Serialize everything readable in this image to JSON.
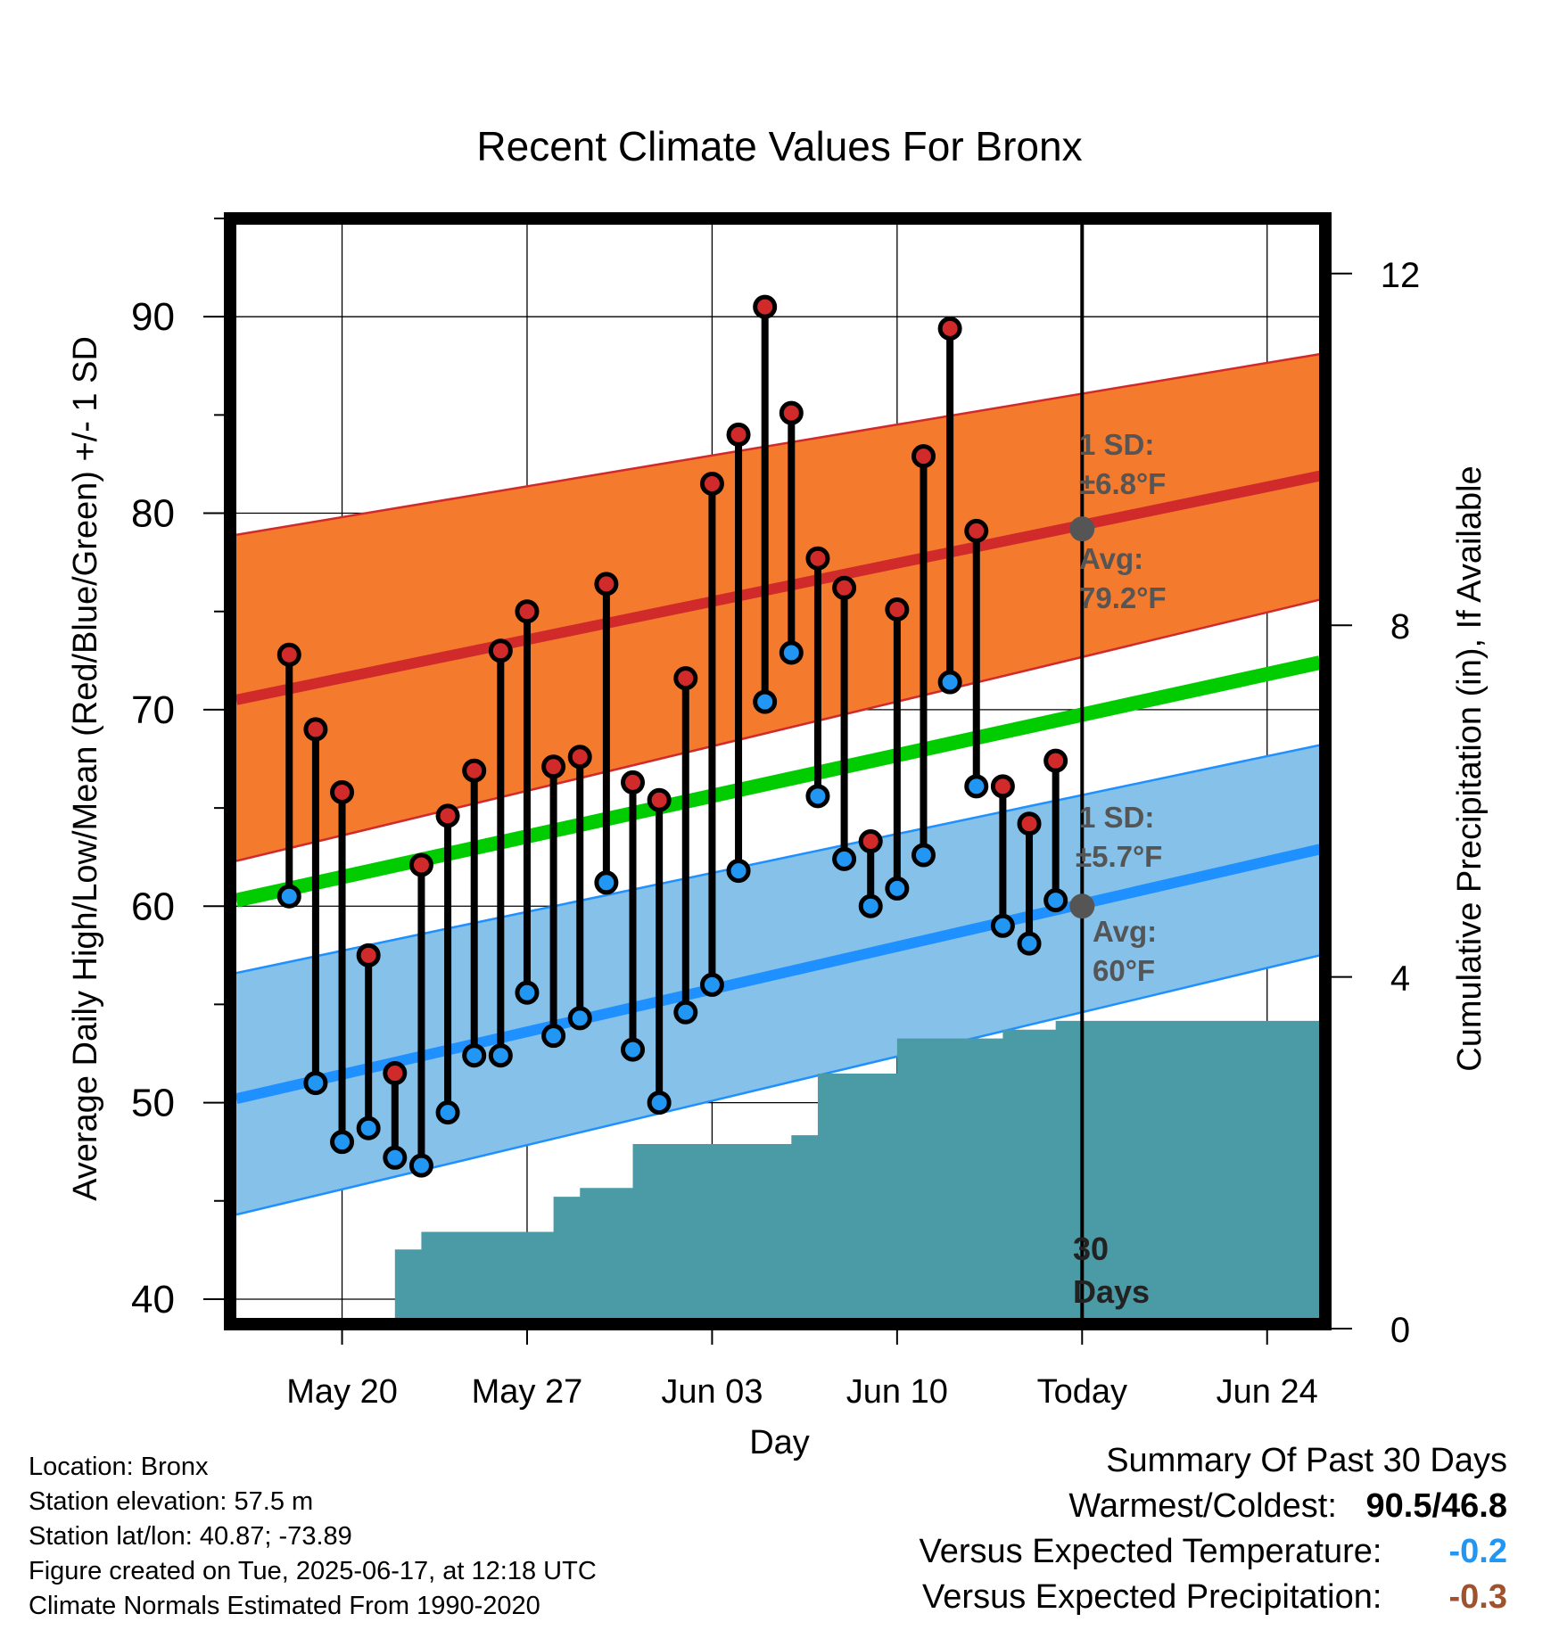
{
  "chart_data": {
    "type": "line",
    "title": "Recent Climate Values For Bronx",
    "xlabel": "Day",
    "ylabel": "Average Daily High/Low/Mean (Red/Blue/Green) +/- 1 SD",
    "y2label": "Cumulative Precipitation (in), If Available",
    "ylim": [
      39,
      95
    ],
    "y2lim": [
      0,
      20
    ],
    "yticks": [
      40,
      50,
      60,
      70,
      80,
      90
    ],
    "y2ticks": [
      0,
      4,
      8,
      12
    ],
    "xlim": [
      "2025-05-16",
      "2025-06-26"
    ],
    "xticks": [
      {
        "date": "2025-05-20",
        "label": "May 20"
      },
      {
        "date": "2025-05-27",
        "label": "May 27"
      },
      {
        "date": "2025-06-03",
        "label": "Jun 03"
      },
      {
        "date": "2025-06-10",
        "label": "Jun 10"
      },
      {
        "date": "2025-06-17",
        "label": "Today"
      },
      {
        "date": "2025-06-24",
        "label": "Jun 24"
      }
    ],
    "today": "2025-06-17",
    "days": [
      "2025-05-18",
      "2025-05-19",
      "2025-05-20",
      "2025-05-21",
      "2025-05-22",
      "2025-05-23",
      "2025-05-24",
      "2025-05-25",
      "2025-05-26",
      "2025-05-27",
      "2025-05-28",
      "2025-05-29",
      "2025-05-30",
      "2025-05-31",
      "2025-06-01",
      "2025-06-02",
      "2025-06-03",
      "2025-06-04",
      "2025-06-05",
      "2025-06-06",
      "2025-06-07",
      "2025-06-08",
      "2025-06-09",
      "2025-06-10",
      "2025-06-11",
      "2025-06-12",
      "2025-06-13",
      "2025-06-14",
      "2025-06-15",
      "2025-06-16"
    ],
    "highs": [
      72.8,
      69.0,
      65.8,
      57.5,
      51.5,
      62.1,
      64.6,
      66.9,
      73.0,
      75.0,
      67.1,
      67.6,
      76.4,
      66.3,
      65.4,
      71.6,
      81.5,
      84.0,
      90.5,
      85.1,
      77.7,
      76.2,
      63.3,
      75.1,
      82.9,
      89.4,
      79.1,
      66.1,
      64.2,
      67.4
    ],
    "lows": [
      60.5,
      51.0,
      48.0,
      48.7,
      47.2,
      46.8,
      49.5,
      52.4,
      52.4,
      55.6,
      53.4,
      54.3,
      61.2,
      52.7,
      50.0,
      54.6,
      56.0,
      61.8,
      70.4,
      72.9,
      65.6,
      62.4,
      60.0,
      60.9,
      62.6,
      71.4,
      66.1,
      59.0,
      58.1,
      60.3
    ],
    "normals": {
      "start": "2025-05-16",
      "end": "2025-06-26",
      "high_mean": [
        70.5,
        81.9
      ],
      "high_upper": [
        78.9,
        88.1
      ],
      "high_lower": [
        62.3,
        75.6
      ],
      "overall_mean": [
        60.3,
        72.4
      ],
      "low_mean": [
        50.2,
        62.9
      ],
      "low_upper": [
        56.6,
        68.2
      ],
      "low_lower": [
        44.3,
        57.5
      ]
    },
    "precipitation": {
      "x": [
        "2025-05-19",
        "2025-05-20",
        "2025-05-21",
        "2025-05-22",
        "2025-05-23",
        "2025-05-24",
        "2025-05-25",
        "2025-05-26",
        "2025-05-27",
        "2025-05-28",
        "2025-05-29",
        "2025-05-30",
        "2025-05-31",
        "2025-06-01",
        "2025-06-02",
        "2025-06-03",
        "2025-06-04",
        "2025-06-05",
        "2025-06-06",
        "2025-06-07",
        "2025-06-08",
        "2025-06-09",
        "2025-06-10",
        "2025-06-11",
        "2025-06-12",
        "2025-06-13",
        "2025-06-14",
        "2025-06-15",
        "2025-06-16",
        "2025-06-17",
        "2025-06-26"
      ],
      "values": [
        0,
        0,
        0,
        0.9,
        1.1,
        1.1,
        1.1,
        1.1,
        1.1,
        1.5,
        1.6,
        1.6,
        2.1,
        2.1,
        2.1,
        2.1,
        2.1,
        2.1,
        2.2,
        2.9,
        2.9,
        2.9,
        3.3,
        3.3,
        3.3,
        3.3,
        3.4,
        3.4,
        3.5,
        3.5,
        3.5
      ]
    },
    "annotations": {
      "high_sd_label": "1 SD:",
      "high_sd_value": "±6.8°F",
      "high_avg_label": "Avg:",
      "high_avg_value": "79.2°F",
      "low_sd_label": "1 SD:",
      "low_sd_value": "±5.7°F",
      "low_avg_label": "Avg:",
      "low_avg_value": "60°F",
      "today_high_avg": 79.2,
      "today_low_avg": 60.0,
      "period_line1": "30",
      "period_line2": "Days"
    },
    "colors": {
      "high_band": "#f47a2e",
      "high_line": "#d12a2a",
      "low_band": "#85c1e9",
      "low_line": "#1e90ff",
      "mean_line": "#00cc00",
      "precip": "#4a9ba6",
      "high_marker": "#d12a2a",
      "low_marker": "#2196f3",
      "today_marker": "#555555",
      "annotation_text": "#555555"
    }
  },
  "info": {
    "location": "Location: Bronx",
    "elevation": "Station elevation: 57.5 m",
    "latlon": "Station lat/lon: 40.87; -73.89",
    "created": "Figure created on Tue, 2025-06-17, at 12:18 UTC",
    "normals": "Climate Normals Estimated From 1990-2020"
  },
  "summary": {
    "title": "Summary Of Past 30 Days",
    "warm_cold_label": "Warmest/Coldest:",
    "warmest": "90.5",
    "separator": "/",
    "coldest": "46.8",
    "temp_label": "Versus Expected Temperature:",
    "temp_value": "-0.2",
    "temp_color": "#2196f3",
    "precip_label": "Versus Expected Precipitation:",
    "precip_value": "-0.3",
    "precip_color": "#a0522d"
  }
}
